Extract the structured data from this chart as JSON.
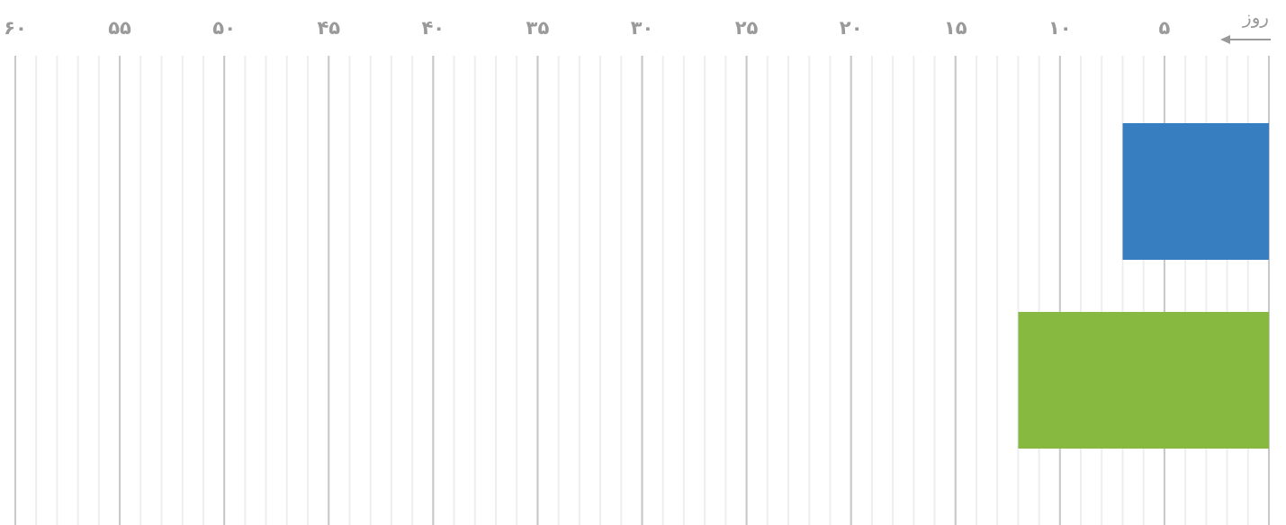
{
  "chart_data": {
    "type": "bar",
    "orientation": "horizontal",
    "xlabel": "روز",
    "categories": [
      null,
      null
    ],
    "values": [
      7,
      12
    ],
    "colors": [
      "#377ec0",
      "#87b840"
    ],
    "xlim": [
      60,
      0
    ],
    "xticks": [
      {
        "value": 0,
        "label": null
      },
      {
        "value": 5,
        "label": "۵"
      },
      {
        "value": 10,
        "label": "۱۰"
      },
      {
        "value": 15,
        "label": "۱۵"
      },
      {
        "value": 20,
        "label": "۲۰"
      },
      {
        "value": 25,
        "label": "۲۵"
      },
      {
        "value": 30,
        "label": "۳۰"
      },
      {
        "value": 35,
        "label": "۳۵"
      },
      {
        "value": 40,
        "label": "۴۰"
      },
      {
        "value": 45,
        "label": "۴۵"
      },
      {
        "value": 50,
        "label": "۵۰"
      },
      {
        "value": 55,
        "label": "۵۵"
      },
      {
        "value": 60,
        "label": "۶۰"
      }
    ],
    "grid": "x"
  }
}
